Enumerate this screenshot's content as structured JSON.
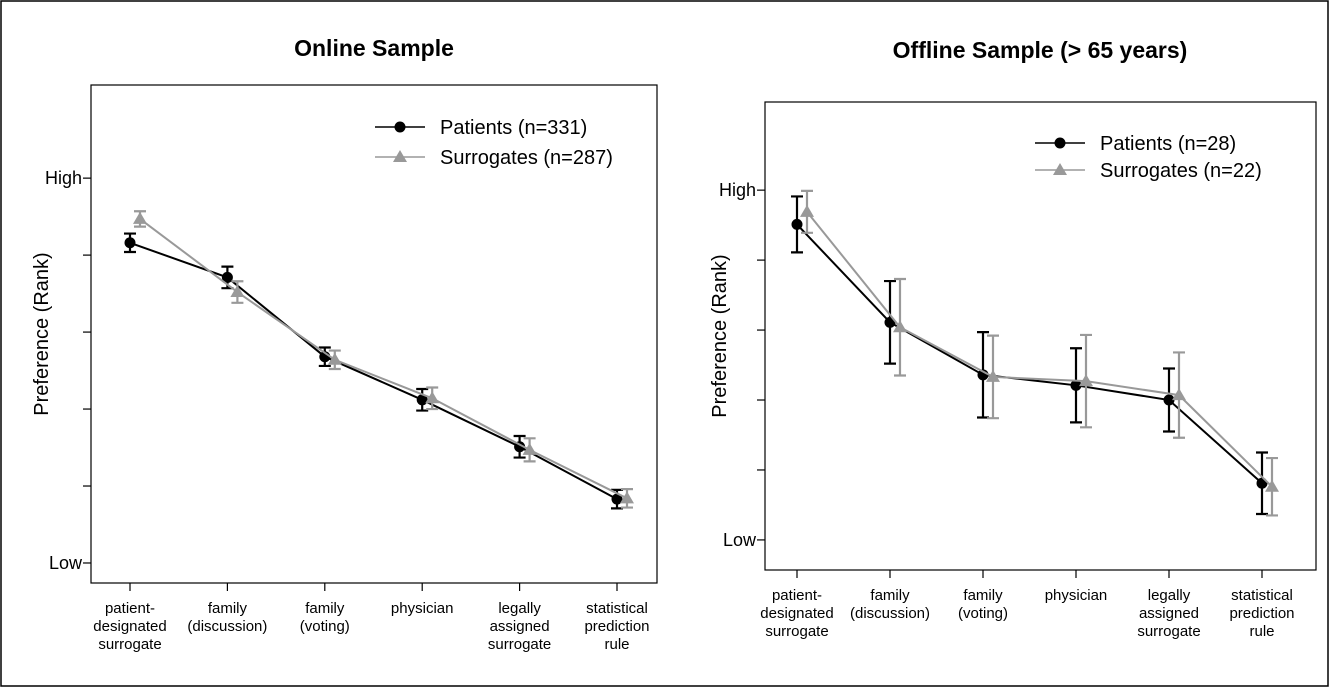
{
  "chart_data": [
    {
      "type": "line",
      "title": "Online Sample",
      "y_label": "Preference (Rank)",
      "categories": [
        "patient-\ndesignated\nsurrogate",
        "family\n(discussion)",
        "family\n(voting)",
        "physician",
        "legally\nassigned\nsurrogate",
        "statistical\nprediction\nrule"
      ],
      "ylim": [
        0.74,
        7.21
      ],
      "yticks": [
        {
          "value": 1,
          "label": "Low"
        },
        {
          "value": 2,
          "label": null
        },
        {
          "value": 3,
          "label": null
        },
        {
          "value": 4,
          "label": null
        },
        {
          "value": 5,
          "label": null
        },
        {
          "value": 6,
          "label": "High"
        }
      ],
      "legend": "top-right",
      "series": [
        {
          "name": "Patients (n=331)",
          "color": "#000000",
          "marker": "circle",
          "values": [
            5.16,
            4.71,
            3.68,
            3.12,
            2.51,
            1.83
          ],
          "errors": [
            0.12,
            0.14,
            0.12,
            0.14,
            0.14,
            0.12
          ]
        },
        {
          "name": "Surrogates (n=287)",
          "color": "#999999",
          "marker": "triangle",
          "values": [
            5.47,
            4.52,
            3.64,
            3.14,
            2.47,
            1.84
          ],
          "errors": [
            0.1,
            0.14,
            0.12,
            0.14,
            0.15,
            0.12
          ]
        }
      ]
    },
    {
      "type": "line",
      "title": "Offline Sample (> 65 years)",
      "y_label": "Preference (Rank)",
      "categories": [
        "patient-\ndesignated\nsurrogate",
        "family\n(discussion)",
        "family\n(voting)",
        "physician",
        "legally\nassigned\nsurrogate",
        "statistical\nprediction\nrule"
      ],
      "ylim": [
        0.57,
        7.26
      ],
      "yticks": [
        {
          "value": 1,
          "label": "Low"
        },
        {
          "value": 2,
          "label": null
        },
        {
          "value": 3,
          "label": null
        },
        {
          "value": 4,
          "label": null
        },
        {
          "value": 5,
          "label": null
        },
        {
          "value": 6,
          "label": "High"
        }
      ],
      "legend": "top-right",
      "series": [
        {
          "name": "Patients (n=28)",
          "color": "#000000",
          "marker": "circle",
          "values": [
            5.51,
            4.11,
            3.36,
            3.21,
            3.0,
            1.81
          ],
          "errors": [
            0.4,
            0.59,
            0.61,
            0.53,
            0.45,
            0.44
          ]
        },
        {
          "name": "Surrogates (n=22)",
          "color": "#999999",
          "marker": "triangle",
          "values": [
            5.69,
            4.04,
            3.33,
            3.27,
            3.07,
            1.76
          ],
          "errors": [
            0.3,
            0.69,
            0.59,
            0.66,
            0.61,
            0.41
          ]
        }
      ]
    }
  ]
}
